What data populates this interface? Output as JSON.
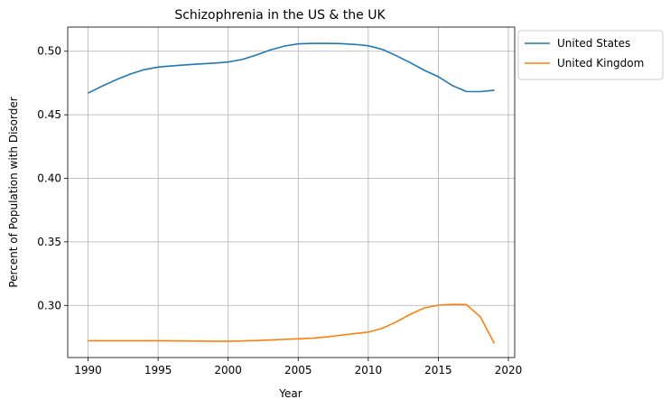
{
  "chart_data": {
    "type": "line",
    "title": "Schizophrenia in the US & the UK",
    "xlabel": "Year",
    "ylabel": "Percent of Population with Disorder",
    "xlim": [
      1988.55,
      2020.45
    ],
    "ylim": [
      0.259,
      0.519
    ],
    "xticks": [
      1990,
      1995,
      2000,
      2005,
      2010,
      2015,
      2020
    ],
    "yticks": [
      0.3,
      0.35,
      0.4,
      0.45,
      0.5
    ],
    "grid": true,
    "legend_position": "outside-top-right",
    "x": [
      1990,
      1991,
      1992,
      1993,
      1994,
      1995,
      1996,
      1997,
      1998,
      1999,
      2000,
      2001,
      2002,
      2003,
      2004,
      2005,
      2006,
      2007,
      2008,
      2009,
      2010,
      2011,
      2012,
      2013,
      2014,
      2015,
      2016,
      2017,
      2018,
      2019
    ],
    "series": [
      {
        "name": "United States",
        "color": "#1f77b4",
        "values": [
          0.467,
          0.4725,
          0.4775,
          0.482,
          0.4855,
          0.4875,
          0.4885,
          0.4893,
          0.49,
          0.4906,
          0.4915,
          0.4935,
          0.497,
          0.501,
          0.504,
          0.5058,
          0.5062,
          0.5062,
          0.506,
          0.5054,
          0.5043,
          0.5015,
          0.4965,
          0.491,
          0.485,
          0.48,
          0.473,
          0.4683,
          0.4682,
          0.4693
        ]
      },
      {
        "name": "United Kingdom",
        "color": "#ff7f0e",
        "values": [
          0.2722,
          0.2722,
          0.2722,
          0.2722,
          0.2722,
          0.2722,
          0.2721,
          0.272,
          0.2719,
          0.2718,
          0.2718,
          0.272,
          0.2724,
          0.2728,
          0.2733,
          0.2737,
          0.2742,
          0.2752,
          0.2765,
          0.2778,
          0.279,
          0.282,
          0.287,
          0.293,
          0.298,
          0.3002,
          0.3008,
          0.3007,
          0.291,
          0.27
        ]
      }
    ]
  }
}
